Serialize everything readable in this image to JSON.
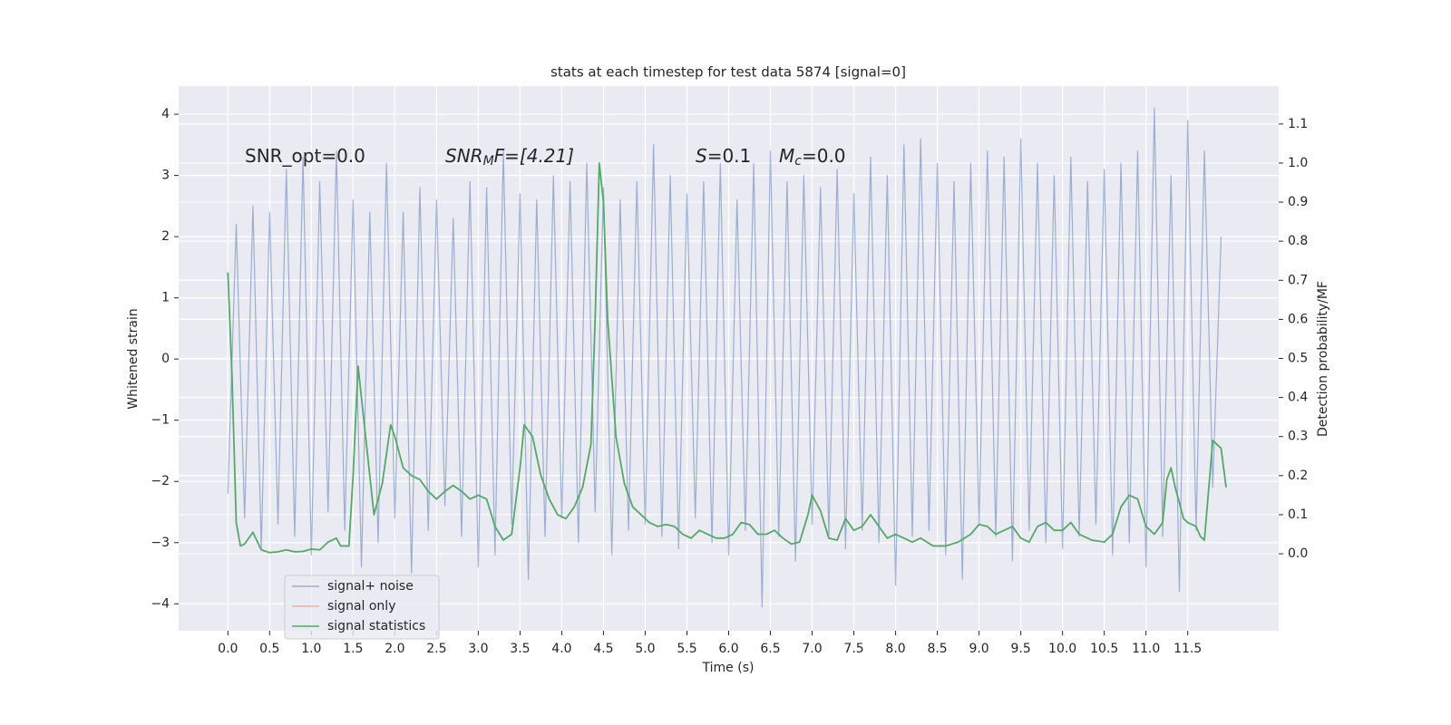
{
  "chart_data": {
    "type": "line",
    "title": "stats at each timestep for test data 5874 [signal=0]",
    "xlabel": "Time (s)",
    "ylabel": "Whitened strain",
    "y2label": "Detection probability/MF",
    "xlim": [
      -0.59,
      12.59
    ],
    "ylim": [
      -4.44,
      4.46
    ],
    "y2lim": [
      -0.197,
      1.197
    ],
    "xticks": [
      {
        "value": 0,
        "label": "0.0"
      },
      0.5,
      {
        "value": 1,
        "label": "1.0"
      },
      1.5,
      {
        "value": 2,
        "label": "2.0"
      },
      2.5,
      {
        "value": 3,
        "label": "3.0"
      },
      3.5,
      {
        "value": 4,
        "label": "4.0"
      },
      4.5,
      {
        "value": 5,
        "label": "5.0"
      },
      5.5,
      {
        "value": 6,
        "label": "6.0"
      },
      6.5,
      {
        "value": 7,
        "label": "7.0"
      },
      7.5,
      {
        "value": 8,
        "label": "8.0"
      },
      8.5,
      {
        "value": 9,
        "label": "9.0"
      },
      9.5,
      {
        "value": 10,
        "label": "10.0"
      },
      10.5,
      {
        "value": 11,
        "label": "11.0"
      },
      11.5
    ],
    "yticks": [
      {
        "value": -4,
        "label": "−4"
      },
      {
        "value": -3,
        "label": "−3"
      },
      {
        "value": -2,
        "label": "−2"
      },
      {
        "value": -1,
        "label": "−1"
      },
      0,
      1,
      2,
      3,
      4
    ],
    "y2ticks": [
      {
        "value": 0,
        "label": "0.0"
      },
      0.1,
      0.2,
      0.3,
      0.4,
      0.5,
      0.6,
      0.7,
      0.8,
      0.9,
      {
        "value": 1,
        "label": "1.0"
      },
      1.1
    ],
    "grid": true,
    "legend": "lower left",
    "annotations": [
      {
        "text": "SNR_opt=0.0"
      },
      {
        "text": "SNR",
        "sub": "M",
        "tail": "F=[4.21]"
      },
      {
        "text": "S",
        "tail": "=0.1"
      },
      {
        "text": "M",
        "sub": "c",
        "tail": "=0.0"
      }
    ],
    "series": [
      {
        "name": "signal+ noise",
        "color": "#4c72b0",
        "opacity": 0.5,
        "x": [
          0,
          0.1,
          0.2,
          0.3,
          0.4,
          0.5,
          0.6,
          0.7,
          0.8,
          0.9,
          1,
          1.1,
          1.2,
          1.3,
          1.4,
          1.5,
          1.6,
          1.7,
          1.8,
          1.9,
          2,
          2.1,
          2.2,
          2.3,
          2.4,
          2.5,
          2.6,
          2.7,
          2.8,
          2.9,
          3,
          3.1,
          3.2,
          3.3,
          3.4,
          3.5,
          3.6,
          3.7,
          3.8,
          3.9,
          4,
          4.1,
          4.2,
          4.3,
          4.4,
          4.5,
          4.6,
          4.7,
          4.8,
          4.9,
          5,
          5.1,
          5.2,
          5.3,
          5.4,
          5.5,
          5.6,
          5.7,
          5.8,
          5.9,
          6,
          6.1,
          6.2,
          6.3,
          6.4,
          6.5,
          6.6,
          6.7,
          6.8,
          6.9,
          7,
          7.1,
          7.2,
          7.3,
          7.4,
          7.5,
          7.6,
          7.7,
          7.8,
          7.9,
          8,
          8.1,
          8.2,
          8.3,
          8.4,
          8.5,
          8.6,
          8.7,
          8.8,
          8.9,
          9,
          9.1,
          9.2,
          9.3,
          9.4,
          9.5,
          9.6,
          9.7,
          9.8,
          9.9,
          10,
          10.1,
          10.2,
          10.3,
          10.4,
          10.5,
          10.6,
          10.7,
          10.8,
          10.9,
          11,
          11.1,
          11.2,
          11.3,
          11.4,
          11.5,
          11.6,
          11.7,
          11.8,
          11.9
        ],
        "values": [
          -2.2,
          2.2,
          -2.6,
          2.5,
          -3.1,
          2.4,
          -2.7,
          3.1,
          -2.9,
          3.3,
          -3.2,
          2.9,
          -2.5,
          3.4,
          -2.8,
          2.6,
          -3.4,
          2.4,
          -3.0,
          3.2,
          -2.6,
          2.4,
          -3.5,
          2.8,
          -2.8,
          2.6,
          -2.4,
          2.3,
          -2.9,
          2.9,
          -3.4,
          2.8,
          -3.2,
          3.4,
          -2.7,
          2.7,
          -3.6,
          2.6,
          -2.9,
          3.0,
          -2.6,
          2.9,
          -3.0,
          3.2,
          -2.5,
          2.8,
          -3.2,
          2.6,
          -2.8,
          2.9,
          -2.7,
          3.5,
          -2.9,
          3.0,
          -3.1,
          2.7,
          -2.6,
          2.9,
          -3.0,
          3.2,
          -3.2,
          2.6,
          -2.8,
          3.2,
          -4.05,
          3.4,
          -2.9,
          2.9,
          -3.3,
          3.0,
          -2.7,
          2.8,
          -2.9,
          3.1,
          -3.1,
          2.7,
          -2.8,
          3.3,
          -3.0,
          3.0,
          -3.7,
          3.5,
          -2.9,
          3.6,
          -2.8,
          3.2,
          -3.2,
          2.9,
          -3.6,
          3.2,
          -2.7,
          3.4,
          -2.9,
          3.3,
          -3.3,
          3.6,
          -2.8,
          3.2,
          -3.0,
          3.0,
          -3.1,
          3.3,
          -2.9,
          2.9,
          -2.7,
          3.1,
          -3.2,
          3.2,
          -3.0,
          3.4,
          -3.4,
          4.1,
          -2.9,
          3.0,
          -3.8,
          3.9,
          -2.8,
          3.4,
          -2.1,
          2.0
        ]
      },
      {
        "name": "signal only",
        "color": "#dd8452",
        "opacity": 0.5,
        "x": [],
        "values": []
      },
      {
        "name": "signal statistics",
        "color": "#55a868",
        "axis": "y2",
        "x": [
          0,
          0.05,
          0.1,
          0.15,
          0.2,
          0.3,
          0.4,
          0.5,
          0.6,
          0.7,
          0.8,
          0.9,
          1,
          1.1,
          1.2,
          1.3,
          1.35,
          1.45,
          1.5,
          1.56,
          1.65,
          1.75,
          1.85,
          1.95,
          2,
          2.1,
          2.2,
          2.3,
          2.4,
          2.5,
          2.6,
          2.7,
          2.8,
          2.9,
          3,
          3.1,
          3.2,
          3.3,
          3.4,
          3.5,
          3.55,
          3.65,
          3.75,
          3.85,
          3.95,
          4.05,
          4.15,
          4.25,
          4.35,
          4.4,
          4.45,
          4.5,
          4.55,
          4.65,
          4.75,
          4.85,
          4.95,
          5.05,
          5.15,
          5.25,
          5.35,
          5.45,
          5.55,
          5.65,
          5.75,
          5.85,
          5.95,
          6.05,
          6.15,
          6.25,
          6.35,
          6.45,
          6.55,
          6.65,
          6.75,
          6.85,
          6.95,
          7,
          7.1,
          7.2,
          7.3,
          7.4,
          7.5,
          7.6,
          7.7,
          7.8,
          7.9,
          8,
          8.1,
          8.2,
          8.3,
          8.45,
          8.6,
          8.75,
          8.9,
          9,
          9.1,
          9.2,
          9.3,
          9.4,
          9.5,
          9.6,
          9.7,
          9.8,
          9.9,
          10,
          10.1,
          10.2,
          10.35,
          10.5,
          10.6,
          10.7,
          10.8,
          10.9,
          11,
          11.1,
          11.2,
          11.25,
          11.3,
          11.35,
          11.45,
          11.5,
          11.6,
          11.65,
          11.7,
          11.8,
          11.9,
          11.96
        ],
        "values": [
          0.72,
          0.45,
          0.08,
          0.02,
          0.025,
          0.055,
          0.01,
          0.003,
          0.005,
          0.01,
          0.005,
          0.006,
          0.012,
          0.01,
          0.03,
          0.04,
          0.02,
          0.02,
          0.2,
          0.48,
          0.3,
          0.1,
          0.18,
          0.33,
          0.3,
          0.22,
          0.2,
          0.19,
          0.16,
          0.14,
          0.16,
          0.175,
          0.16,
          0.14,
          0.15,
          0.14,
          0.07,
          0.035,
          0.05,
          0.22,
          0.33,
          0.3,
          0.2,
          0.14,
          0.1,
          0.09,
          0.12,
          0.17,
          0.28,
          0.6,
          1.0,
          0.9,
          0.6,
          0.3,
          0.18,
          0.12,
          0.1,
          0.08,
          0.07,
          0.075,
          0.07,
          0.05,
          0.04,
          0.06,
          0.05,
          0.04,
          0.04,
          0.05,
          0.08,
          0.075,
          0.05,
          0.05,
          0.06,
          0.04,
          0.025,
          0.03,
          0.1,
          0.15,
          0.11,
          0.04,
          0.035,
          0.09,
          0.06,
          0.07,
          0.1,
          0.07,
          0.04,
          0.05,
          0.04,
          0.03,
          0.04,
          0.02,
          0.02,
          0.03,
          0.05,
          0.075,
          0.07,
          0.05,
          0.06,
          0.07,
          0.04,
          0.03,
          0.07,
          0.08,
          0.06,
          0.06,
          0.08,
          0.05,
          0.035,
          0.03,
          0.05,
          0.12,
          0.15,
          0.14,
          0.07,
          0.05,
          0.08,
          0.19,
          0.22,
          0.17,
          0.09,
          0.08,
          0.07,
          0.045,
          0.035,
          0.29,
          0.27,
          0.17
        ]
      }
    ]
  }
}
